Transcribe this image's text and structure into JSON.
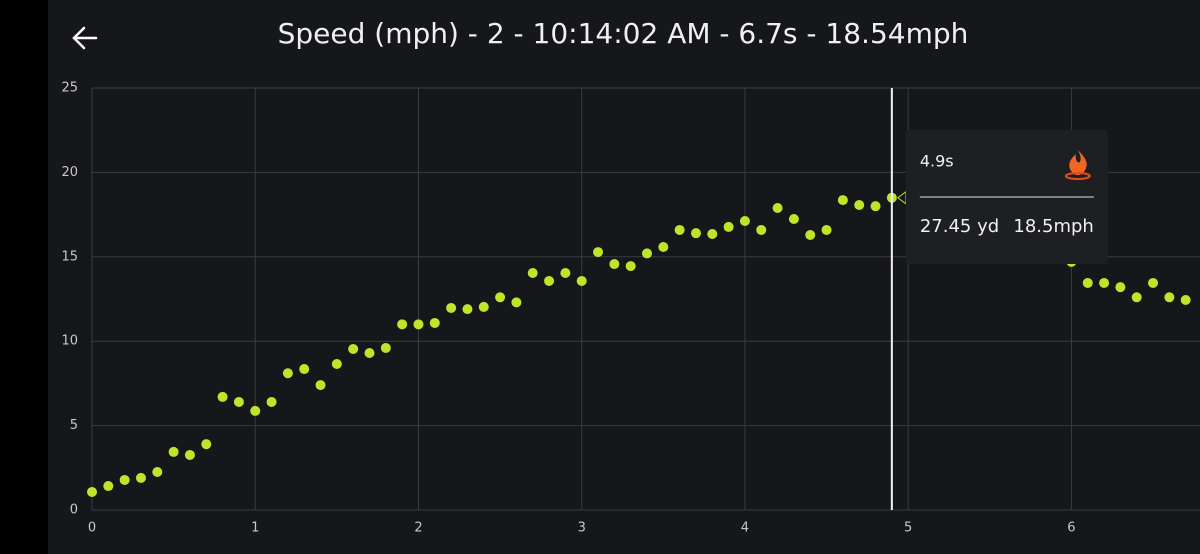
{
  "chart_data": {
    "type": "scatter",
    "title": "Speed (mph) - 2 - 10:14:02 AM - 6.7s - 18.54mph",
    "x": [
      0,
      0.1,
      0.2,
      0.3,
      0.4,
      0.5,
      0.6,
      0.7,
      0.8,
      0.9,
      1.0,
      1.1,
      1.2,
      1.3,
      1.4,
      1.5,
      1.6,
      1.7,
      1.8,
      1.9,
      2.0,
      2.1,
      2.2,
      2.3,
      2.4,
      2.5,
      2.6,
      2.7,
      2.8,
      2.9,
      3.0,
      3.1,
      3.2,
      3.3,
      3.4,
      3.5,
      3.6,
      3.7,
      3.8,
      3.9,
      4.0,
      4.1,
      4.2,
      4.3,
      4.4,
      4.5,
      4.6,
      4.7,
      4.8,
      4.9,
      6.0,
      6.1,
      6.2,
      6.3,
      6.4,
      6.5,
      6.6,
      6.7
    ],
    "values": [
      1.07,
      1.42,
      1.78,
      1.9,
      2.25,
      3.44,
      3.26,
      3.9,
      6.7,
      6.4,
      5.87,
      6.4,
      8.1,
      8.35,
      7.4,
      8.65,
      9.54,
      9.3,
      9.6,
      11.0,
      11.0,
      11.08,
      11.97,
      11.9,
      12.03,
      12.6,
      12.3,
      14.04,
      13.57,
      14.04,
      13.57,
      15.28,
      14.57,
      14.45,
      15.2,
      15.58,
      16.59,
      16.4,
      16.35,
      16.77,
      17.12,
      16.59,
      17.89,
      17.24,
      16.29,
      16.59,
      18.36,
      18.07,
      18.0,
      18.5,
      14.7,
      13.45,
      13.45,
      13.2,
      12.6,
      13.45,
      12.6,
      12.44
    ],
    "color": "#bde52a",
    "xlim": [
      0,
      6.8
    ],
    "ylim": [
      0,
      25
    ],
    "xticks": [
      0,
      1,
      2,
      3,
      4,
      5,
      6
    ],
    "yticks": [
      0,
      5,
      10,
      15,
      20,
      25
    ],
    "grid": true,
    "cursor_x": 4.9,
    "tooltip": {
      "time": "4.9s",
      "distance": "27.45 yd",
      "speed": "18.5mph"
    }
  }
}
